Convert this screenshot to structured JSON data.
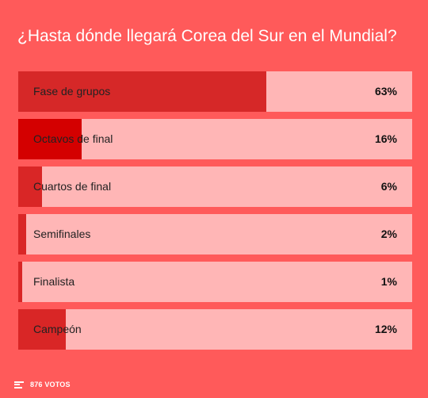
{
  "poll": {
    "question": "¿Hasta dónde llegará Corea del Sur en el Mundial?",
    "options": [
      {
        "label": "Fase de grupos",
        "percent_label": "63%",
        "percent": 63,
        "fill_color": "#d62828"
      },
      {
        "label": "Octavos de final",
        "percent_label": "16%",
        "percent": 16,
        "fill_color": "#d40000"
      },
      {
        "label": "Cuartos de final",
        "percent_label": "6%",
        "percent": 6,
        "fill_color": "#d92626"
      },
      {
        "label": "Semifinales",
        "percent_label": "2%",
        "percent": 2,
        "fill_color": "#d92626"
      },
      {
        "label": "Finalista",
        "percent_label": "1%",
        "percent": 1,
        "fill_color": "#d92626"
      },
      {
        "label": "Campeón",
        "percent_label": "12%",
        "percent": 12,
        "fill_color": "#d92626"
      }
    ],
    "votes_label": "876 VOTOS",
    "votes_icon": "bar-list-icon"
  },
  "colors": {
    "background": "#ff5a5a",
    "track": "#ffb6b6"
  }
}
